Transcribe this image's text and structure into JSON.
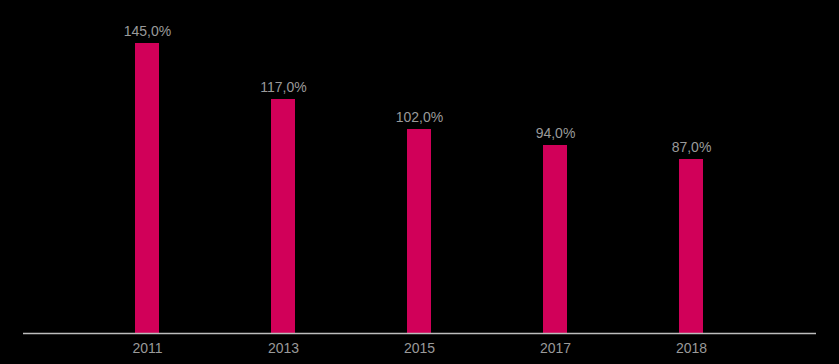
{
  "chart_data": {
    "type": "bar",
    "categories": [
      "2011",
      "2013",
      "2015",
      "2017",
      "2018"
    ],
    "values": [
      145,
      117,
      102,
      94,
      87
    ],
    "value_labels": [
      "145,0%",
      "117,0%",
      "102,0%",
      "94,0%",
      "87,0%"
    ],
    "color": "#d10059",
    "ylim": [
      0,
      166.5
    ],
    "data_labels": true,
    "tick_labels": "x",
    "grid": false
  }
}
